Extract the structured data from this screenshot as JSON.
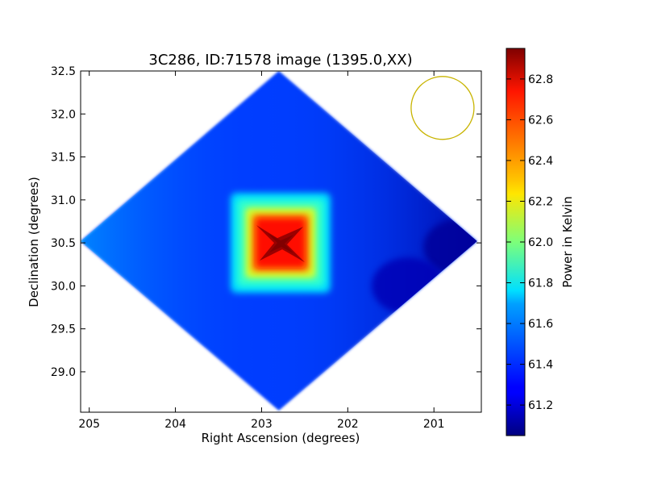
{
  "chart_data": {
    "type": "heatmap",
    "title": "3C286, ID:71578 image (1395.0,XX)",
    "xlabel": "Right Ascension (degrees)",
    "ylabel": "Declination (degrees)",
    "xlim": [
      205.1,
      200.45
    ],
    "ylim": [
      28.53,
      32.5
    ],
    "x_ticks": [
      "205",
      "204",
      "203",
      "202",
      "201"
    ],
    "x_tick_values": [
      205,
      204,
      203,
      202,
      201
    ],
    "y_ticks": [
      "29.0",
      "29.5",
      "30.0",
      "30.5",
      "31.0",
      "31.5",
      "32.0",
      "32.5"
    ],
    "y_tick_values": [
      29.0,
      29.5,
      30.0,
      30.5,
      31.0,
      31.5,
      32.0,
      32.5
    ],
    "colorbar": {
      "label": "Power in Kelvin",
      "range": [
        61.05,
        62.95
      ],
      "ticks": [
        "61.2",
        "61.4",
        "61.6",
        "61.8",
        "62.0",
        "62.2",
        "62.4",
        "62.6",
        "62.8"
      ],
      "tick_values": [
        61.2,
        61.4,
        61.6,
        61.8,
        62.0,
        62.2,
        62.4,
        62.6,
        62.8
      ],
      "colormap": "jet"
    },
    "coverage": "diamond",
    "coverage_corners": {
      "top": [
        202.8,
        32.5
      ],
      "bottom": [
        202.8,
        28.55
      ],
      "left": [
        205.1,
        30.52
      ],
      "right": [
        200.5,
        30.52
      ]
    },
    "peak": {
      "ra": 202.78,
      "dec": 30.5,
      "value": 62.95
    },
    "background_value": 61.4,
    "features": [
      {
        "name": "source",
        "ra": 202.78,
        "dec": 30.5,
        "peak": 62.95
      },
      {
        "name": "low-region",
        "ra": 200.7,
        "dec": 30.45,
        "value": 61.1
      },
      {
        "name": "low-region",
        "ra": 201.3,
        "dec": 30.0,
        "value": 61.15
      }
    ],
    "beam_circle": {
      "ra": 200.9,
      "dec": 32.07,
      "color": "#c8b400"
    },
    "grid": false
  }
}
